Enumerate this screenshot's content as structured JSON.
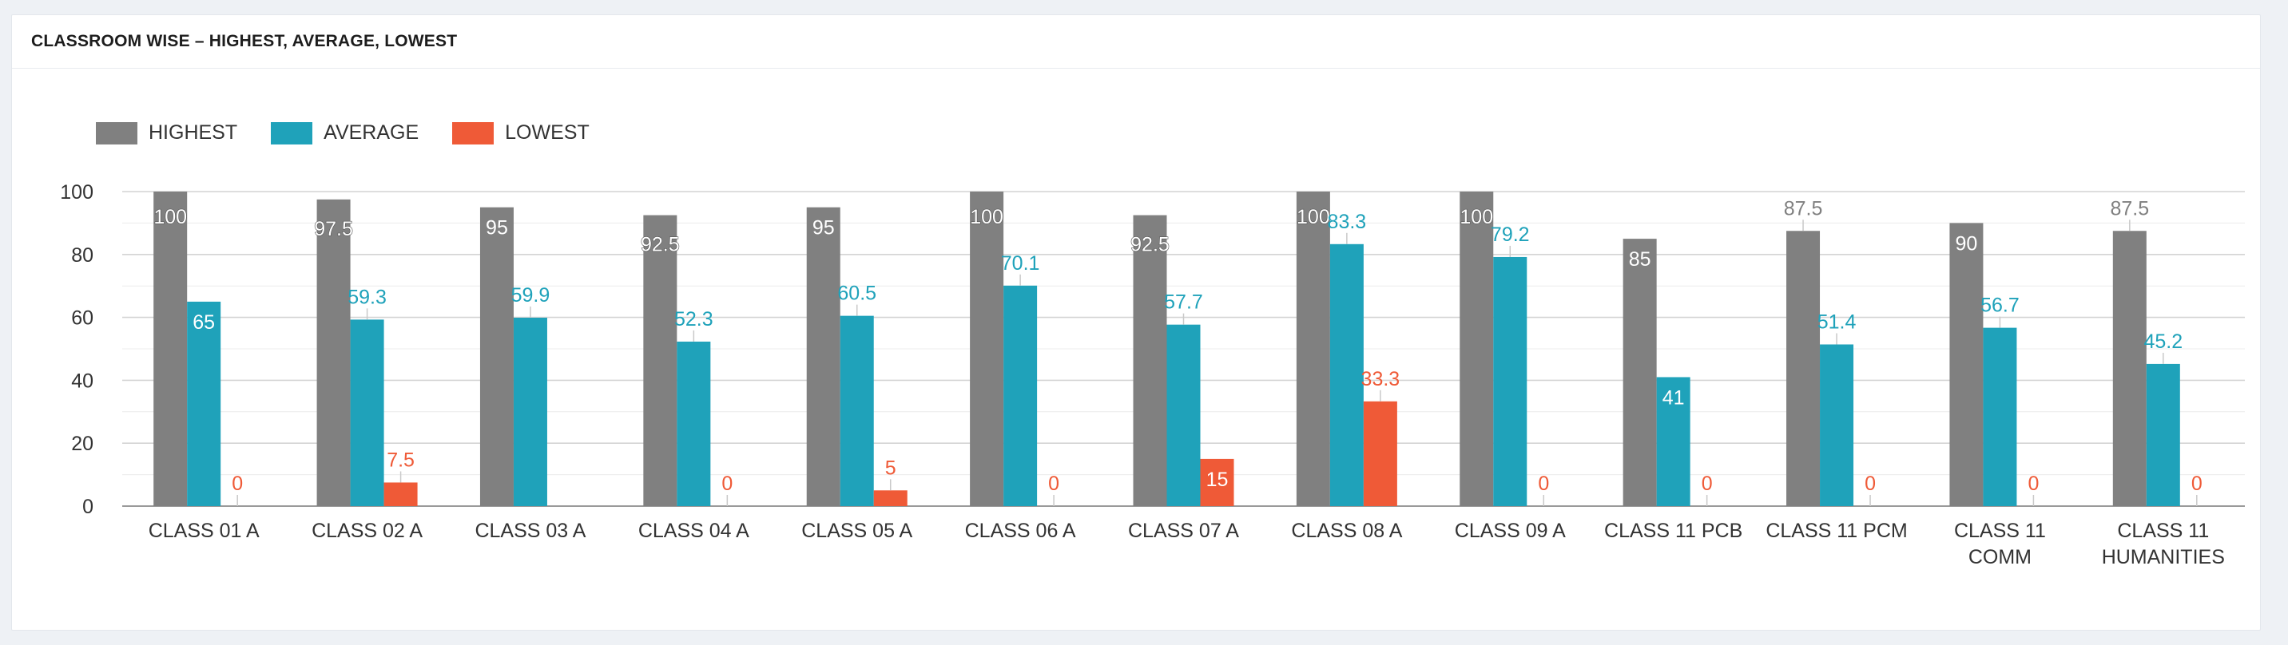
{
  "header": {
    "title": "CLASSROOM WISE – HIGHEST, AVERAGE, LOWEST"
  },
  "chart_data": {
    "type": "bar",
    "title": "",
    "xlabel": "",
    "ylabel": "",
    "ylim": [
      0,
      100
    ],
    "yticks": [
      0,
      20,
      40,
      60,
      80,
      100
    ],
    "grid": true,
    "legend_position": "top-left",
    "categories": [
      [
        "CLASS 01 A"
      ],
      [
        "CLASS 02 A"
      ],
      [
        "CLASS 03 A"
      ],
      [
        "CLASS 04 A"
      ],
      [
        "CLASS 05 A"
      ],
      [
        "CLASS 06 A"
      ],
      [
        "CLASS 07 A"
      ],
      [
        "CLASS 08 A"
      ],
      [
        "CLASS 09 A"
      ],
      [
        "CLASS 11 PCB"
      ],
      [
        "CLASS 11 PCM"
      ],
      [
        "CLASS 11",
        "COMM"
      ],
      [
        "CLASS 11",
        "HUMANITIES"
      ]
    ],
    "series": [
      {
        "name": "HIGHEST",
        "color": "#808080",
        "values": [
          100,
          97.5,
          95,
          92.5,
          95,
          100,
          92.5,
          100,
          100,
          85,
          87.5,
          90,
          87.5
        ]
      },
      {
        "name": "AVERAGE",
        "color": "#1fa2ba",
        "values": [
          65,
          59.3,
          59.9,
          52.3,
          60.5,
          70.1,
          57.7,
          83.3,
          79.2,
          41,
          51.4,
          56.7,
          45.2
        ]
      },
      {
        "name": "LOWEST",
        "color": "#ef5a37",
        "values": [
          0,
          7.5,
          null,
          0,
          5,
          0,
          15,
          33.3,
          0,
          0,
          0,
          0,
          0
        ]
      }
    ]
  }
}
